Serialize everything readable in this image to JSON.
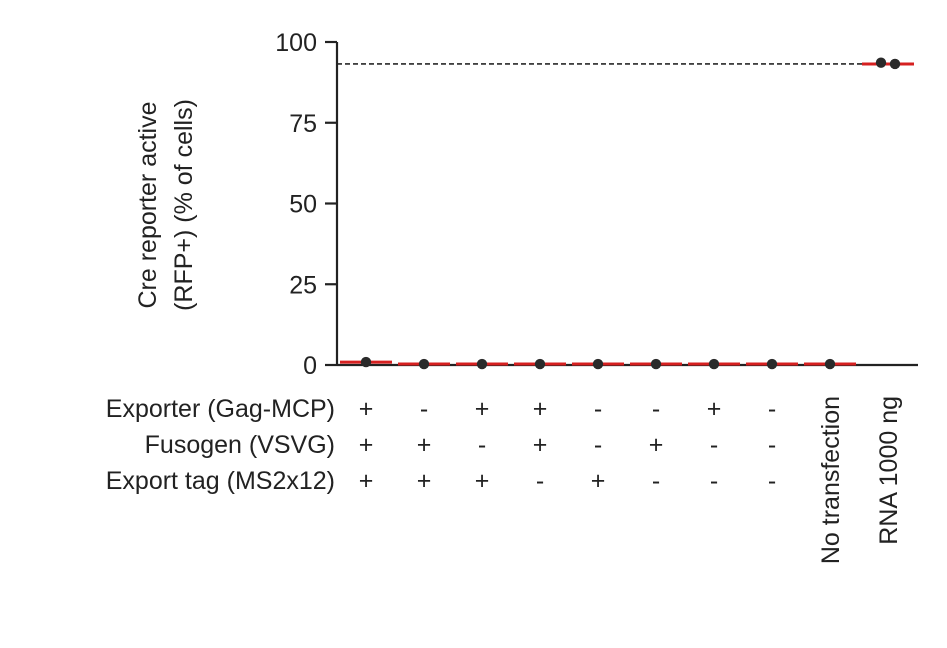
{
  "chart_data": {
    "type": "scatter",
    "ylabel_lines": [
      "Cre reporter active",
      "(RFP+) (% of cells)"
    ],
    "ylim": [
      0,
      100
    ],
    "yticks": [
      0,
      25,
      50,
      75,
      100
    ],
    "reference_line": 93.2,
    "conditions": [
      {
        "label": "Exporter (Gag-MCP)",
        "signs": [
          "+",
          "-",
          "+",
          "+",
          "-",
          "-",
          "+",
          "-"
        ]
      },
      {
        "label": "Fusogen (VSVG)",
        "signs": [
          "+",
          "+",
          "-",
          "+",
          "-",
          "+",
          "-",
          "-"
        ]
      },
      {
        "label": "Export tag (MS2x12)",
        "signs": [
          "+",
          "+",
          "+",
          "-",
          "+",
          "-",
          "-",
          "-"
        ]
      }
    ],
    "rotated_labels": [
      {
        "index": 8,
        "label": "No transfection"
      },
      {
        "index": 9,
        "label": "RNA 1000 ng"
      }
    ],
    "groups": [
      {
        "mean": 0.9,
        "points": [
          0.9
        ]
      },
      {
        "mean": 0.3,
        "points": [
          0.3
        ]
      },
      {
        "mean": 0.3,
        "points": [
          0.3
        ]
      },
      {
        "mean": 0.3,
        "points": [
          0.3
        ]
      },
      {
        "mean": 0.3,
        "points": [
          0.3
        ]
      },
      {
        "mean": 0.3,
        "points": [
          0.3
        ]
      },
      {
        "mean": 0.3,
        "points": [
          0.3
        ]
      },
      {
        "mean": 0.3,
        "points": [
          0.3
        ]
      },
      {
        "mean": 0.3,
        "points": [
          0.3
        ]
      },
      {
        "mean": 93.2,
        "points": [
          93.6,
          93.2
        ]
      }
    ],
    "colors": {
      "mean_line": "#d62020",
      "point": "#2a2a2a",
      "axis": "#222222",
      "reference": "#000000"
    }
  }
}
